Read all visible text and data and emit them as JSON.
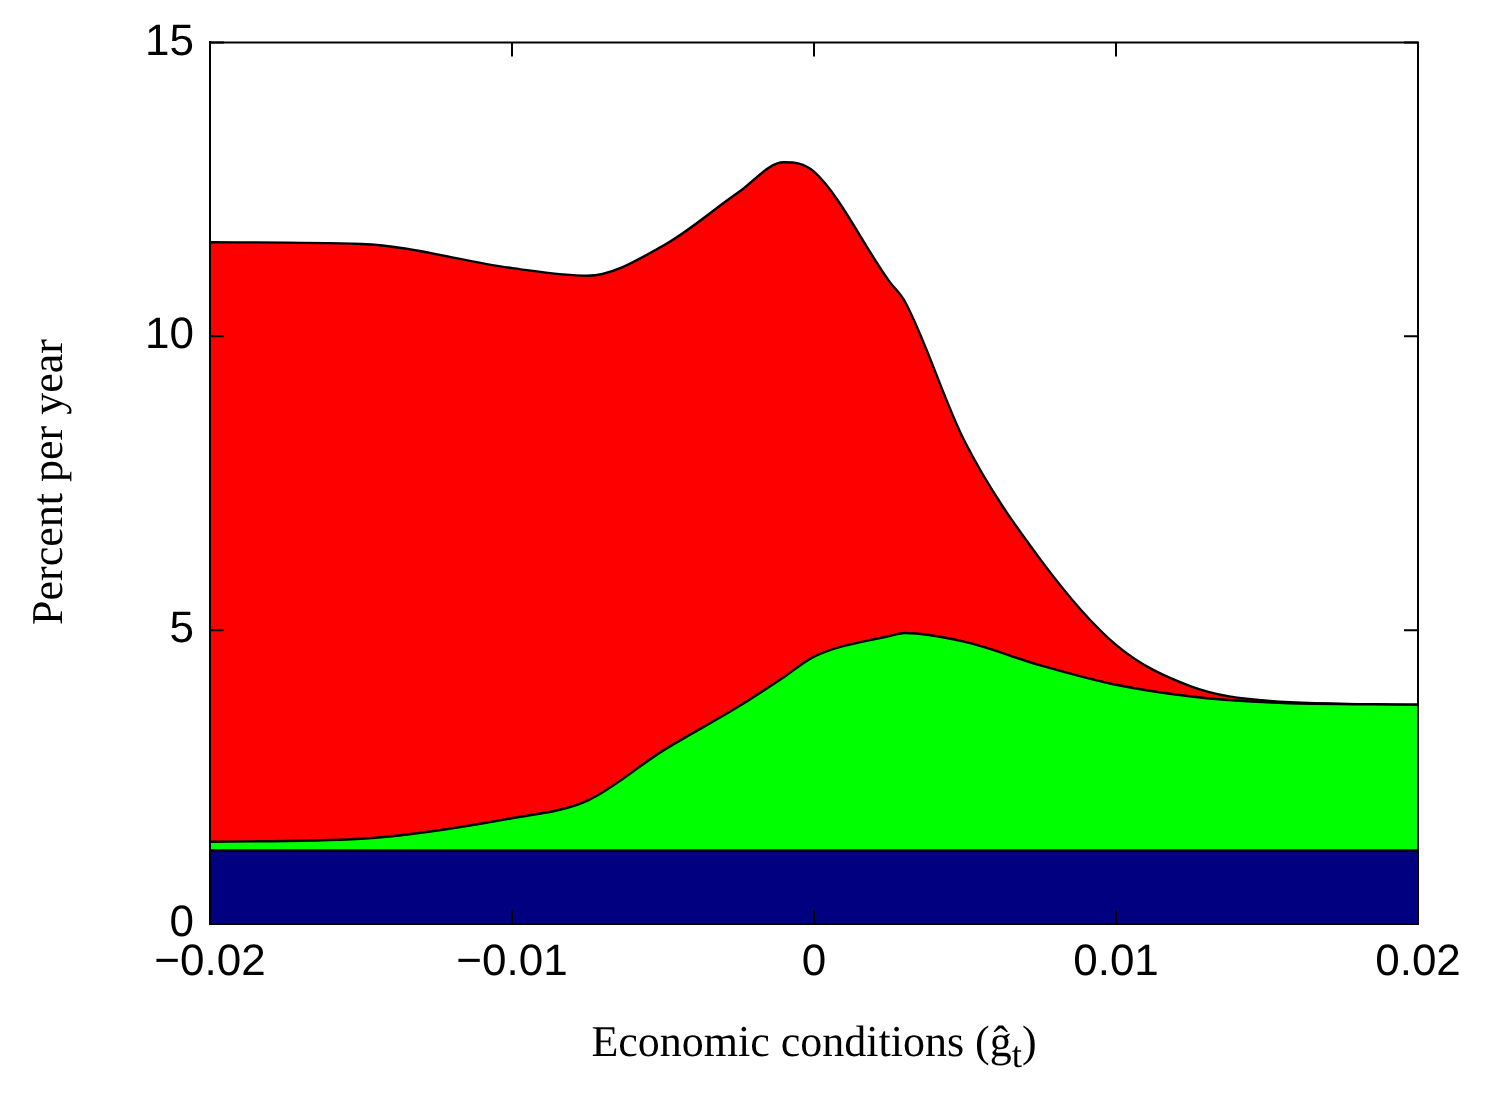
{
  "chart_data": {
    "type": "area",
    "stacked": true,
    "xlabel": "Economic conditions (ĝ$_{t}$)",
    "ylabel": "Percent per year",
    "x": [
      -0.02,
      -0.015,
      -0.01,
      -0.0075,
      -0.005,
      -0.0025,
      -0.001,
      0,
      0.0025,
      0.003,
      0.005,
      0.0075,
      0.01,
      0.0125,
      0.015,
      0.02
    ],
    "series": [
      {
        "color": "#000080",
        "values": [
          1.25,
          1.25,
          1.25,
          1.25,
          1.25,
          1.25,
          1.25,
          1.25,
          1.25,
          1.25,
          1.25,
          1.25,
          1.25,
          1.25,
          1.25,
          1.25
        ]
      },
      {
        "color": "#00ff00",
        "values": [
          0.15,
          0.2,
          0.55,
          0.85,
          1.7,
          2.45,
          2.95,
          3.3,
          3.65,
          3.7,
          3.55,
          3.15,
          2.82,
          2.62,
          2.52,
          2.48
        ]
      },
      {
        "color": "#ff0000",
        "values": [
          10.2,
          10.12,
          9.36,
          8.93,
          8.59,
          8.75,
          8.76,
          8.25,
          6.03,
          5.65,
          3.4,
          1.8,
          0.68,
          0.17,
          0.03,
          0
        ]
      }
    ],
    "xlim": [
      -0.02,
      0.02
    ],
    "xticks": [
      {
        "value": -0.02,
        "label": "−0.02"
      },
      {
        "value": -0.01,
        "label": "−0.01"
      },
      0,
      0.01,
      0.02
    ],
    "ylim": [
      0,
      15
    ],
    "yticks": [
      0,
      5,
      10,
      15
    ],
    "grid": false,
    "legend": false
  }
}
